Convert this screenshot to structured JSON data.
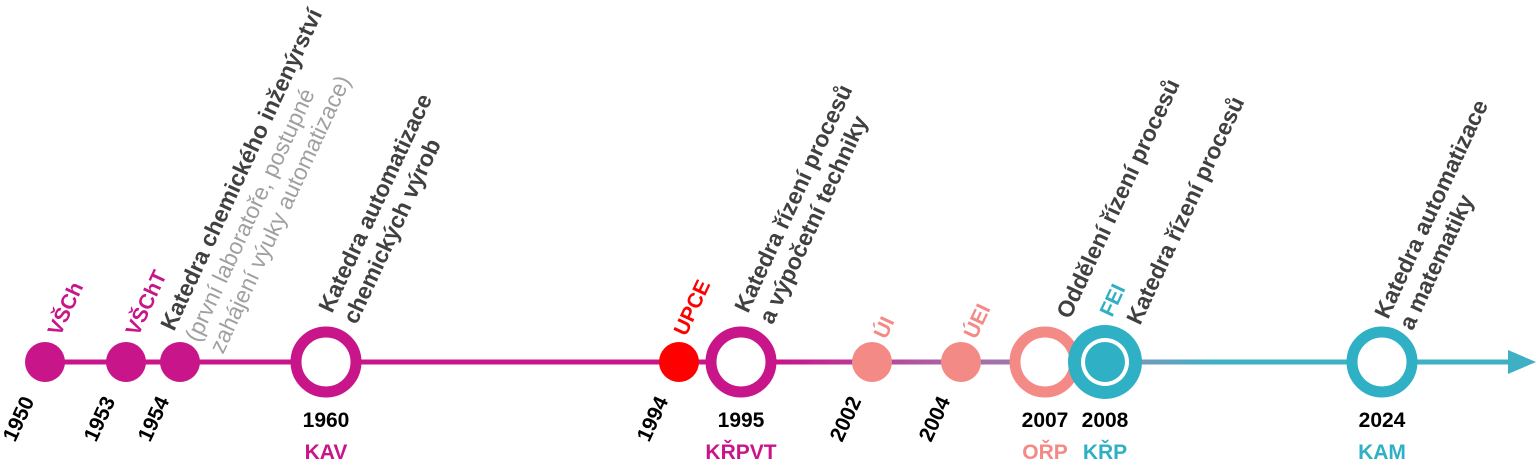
{
  "events": [
    {
      "year": "1950",
      "abbr": "VŠCh"
    },
    {
      "year": "1953",
      "abbr": "VŠChT"
    },
    {
      "year": "1954",
      "lines": [
        "Katedra chemického inženýrství"
      ],
      "note": [
        "(první laboratoře, postupné",
        "zahájení výuky automatizace)"
      ]
    },
    {
      "year": "1960",
      "abbr": "KAV",
      "lines": [
        "Katedra automatizace",
        "chemických výrob"
      ]
    },
    {
      "year": "1994",
      "abbr": "UPCE"
    },
    {
      "year": "1995",
      "abbr": "KŘPVT",
      "lines": [
        "Katedra řízení procesů",
        "a výpočetní techniky"
      ]
    },
    {
      "year": "2002",
      "abbr": "ÚI"
    },
    {
      "year": "2004",
      "abbr": "ÚEI"
    },
    {
      "year": "2007",
      "abbr": "OŘP",
      "lines": [
        "Oddělení řízení procesů"
      ]
    },
    {
      "year": "2008",
      "abbr": "KŘP",
      "faculty": "FEI",
      "lines": [
        "Katedra řízení procesů"
      ]
    },
    {
      "year": "2024",
      "abbr": "KAM",
      "lines": [
        "Katedra automatizace",
        "a matematiky"
      ]
    }
  ]
}
